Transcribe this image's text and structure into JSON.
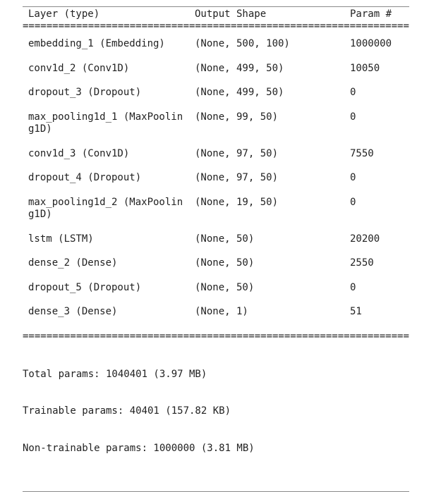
{
  "header": {
    "col_name": "Layer (type)",
    "col_shape": "Output Shape",
    "col_param": "Param #"
  },
  "separator": "=================================================================",
  "layers": [
    {
      "name": "embedding_1 (Embedding)",
      "shape": "(None, 500, 100)",
      "params": "1000000"
    },
    {
      "name": "conv1d_2 (Conv1D)",
      "shape": "(None, 499, 50)",
      "params": "10050"
    },
    {
      "name": "dropout_3 (Dropout)",
      "shape": "(None, 499, 50)",
      "params": "0"
    },
    {
      "name": "max_pooling1d_1 (MaxPoolin\ng1D)",
      "shape": "(None, 99, 50)",
      "params": "0"
    },
    {
      "name": "conv1d_3 (Conv1D)",
      "shape": "(None, 97, 50)",
      "params": "7550"
    },
    {
      "name": "dropout_4 (Dropout)",
      "shape": "(None, 97, 50)",
      "params": "0"
    },
    {
      "name": "max_pooling1d_2 (MaxPoolin\ng1D)",
      "shape": "(None, 19, 50)",
      "params": "0"
    },
    {
      "name": "lstm (LSTM)",
      "shape": "(None, 50)",
      "params": "20200"
    },
    {
      "name": "dense_2 (Dense)",
      "shape": "(None, 50)",
      "params": "2550"
    },
    {
      "name": "dropout_5 (Dropout)",
      "shape": "(None, 50)",
      "params": "0"
    },
    {
      "name": "dense_3 (Dense)",
      "shape": "(None, 1)",
      "params": "51"
    }
  ],
  "totals": {
    "total": "Total params: 1040401 (3.97 MB)",
    "trainable": "Trainable params: 40401 (157.82 KB)",
    "non_trainable": "Non-trainable params: 1000000 (3.81 MB)"
  }
}
